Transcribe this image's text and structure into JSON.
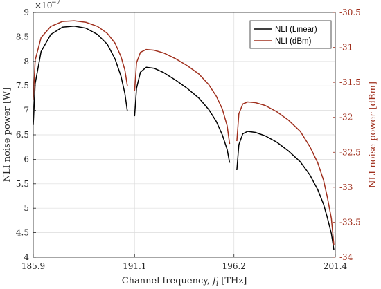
{
  "chart_data": {
    "type": "line",
    "xlabel_main": "Channel frequency, ",
    "xlabel_var": "f",
    "xlabel_sub": "i",
    "xlabel_unit": " [THz]",
    "ylabel_left": "NLI noise power [W]",
    "ylabel_right": "NLI noise power [dBm]",
    "left_exponent": "×10",
    "left_exponent_power": "−7",
    "xlim": [
      185.9,
      201.4
    ],
    "ylim_left": [
      4,
      9
    ],
    "ylim_right": [
      -34,
      -30.5
    ],
    "x_ticks": [
      185.9,
      191.1,
      196.2,
      201.4
    ],
    "x_tick_labels": [
      "185.9",
      "191.1",
      "196.2",
      "201.4"
    ],
    "left_ticks": [
      4,
      4.5,
      5,
      5.5,
      6,
      6.5,
      7,
      7.5,
      8,
      8.5,
      9
    ],
    "left_tick_labels": [
      "4",
      "4.5",
      "5",
      "5.5",
      "6",
      "6.5",
      "7",
      "7.5",
      "8",
      "8.5",
      "9"
    ],
    "right_ticks": [
      -34,
      -33.5,
      -33,
      -32.5,
      -32,
      -31.5,
      -31,
      -30.5
    ],
    "right_tick_labels": [
      "-34",
      "-33.5",
      "-33",
      "-32.5",
      "-32",
      "-31.5",
      "-31",
      "-30.5"
    ],
    "grid": true,
    "legend_position": "top-right",
    "colors": {
      "linear": "#000000",
      "dbm": "#a0301e"
    },
    "series": [
      {
        "name": "NLI (Linear)",
        "axis": "left",
        "segments": [
          {
            "x": [
              185.9,
              186.0,
              186.3,
              186.8,
              187.4,
              188.0,
              188.6,
              189.2,
              189.7,
              190.1,
              190.4,
              190.6,
              190.73
            ],
            "y": [
              6.7,
              7.55,
              8.2,
              8.55,
              8.7,
              8.72,
              8.68,
              8.55,
              8.35,
              8.05,
              7.7,
              7.35,
              6.98
            ]
          },
          {
            "x": [
              191.1,
              191.2,
              191.4,
              191.7,
              192.1,
              192.6,
              193.2,
              193.8,
              194.4,
              194.9,
              195.3,
              195.6,
              195.85,
              195.98
            ],
            "y": [
              6.88,
              7.45,
              7.78,
              7.88,
              7.86,
              7.77,
              7.62,
              7.45,
              7.25,
              7.02,
              6.77,
              6.5,
              6.2,
              5.93
            ]
          },
          {
            "x": [
              196.35,
              196.45,
              196.65,
              196.9,
              197.3,
              197.8,
              198.4,
              199.0,
              199.6,
              200.1,
              200.5,
              200.8,
              201.0,
              201.2,
              201.33
            ],
            "y": [
              5.78,
              6.3,
              6.52,
              6.57,
              6.55,
              6.48,
              6.35,
              6.17,
              5.95,
              5.68,
              5.38,
              5.08,
              4.8,
              4.48,
              4.15
            ]
          }
        ]
      },
      {
        "name": "NLI (dBm)",
        "axis": "right",
        "segments": [
          {
            "x": [
              185.9,
              186.0,
              186.3,
              186.8,
              187.4,
              188.0,
              188.6,
              189.2,
              189.7,
              190.1,
              190.4,
              190.6,
              190.73
            ],
            "y": [
              -31.75,
              -31.18,
              -30.86,
              -30.7,
              -30.63,
              -30.62,
              -30.64,
              -30.7,
              -30.8,
              -30.94,
              -31.13,
              -31.32,
              -31.55
            ]
          },
          {
            "x": [
              191.1,
              191.2,
              191.4,
              191.7,
              192.1,
              192.6,
              193.2,
              193.8,
              194.4,
              194.9,
              195.3,
              195.6,
              195.85,
              195.98
            ],
            "y": [
              -31.62,
              -31.22,
              -31.07,
              -31.03,
              -31.04,
              -31.08,
              -31.16,
              -31.26,
              -31.38,
              -31.53,
              -31.7,
              -31.88,
              -32.12,
              -32.38
            ]
          },
          {
            "x": [
              196.35,
              196.45,
              196.65,
              196.9,
              197.3,
              197.8,
              198.4,
              199.0,
              199.6,
              200.1,
              200.5,
              200.8,
              201.0,
              201.2,
              201.33
            ],
            "y": [
              -32.34,
              -31.95,
              -31.81,
              -31.78,
              -31.79,
              -31.83,
              -31.92,
              -32.04,
              -32.2,
              -32.42,
              -32.65,
              -32.9,
              -33.15,
              -33.45,
              -33.83
            ]
          }
        ]
      }
    ]
  }
}
